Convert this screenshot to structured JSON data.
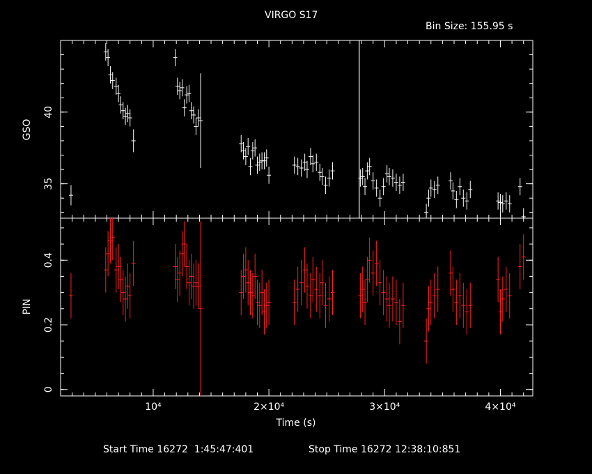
{
  "header": {
    "title": "VIRGO S17",
    "bin_size": "Bin Size: 155.95 s"
  },
  "footer": {
    "start": "Start Time 16272  1:45:47:401",
    "stop": "Stop Time 16272 12:38:10:851"
  },
  "colors": {
    "background": "#000000",
    "axes": "#ffffff",
    "gso_series": "#ffffff",
    "pin_series": "#ff2020"
  },
  "chart_data": [
    {
      "type": "scatter",
      "panel": "top",
      "title": "VIRGO S17",
      "ylabel": "GSO",
      "xlim": [
        2000,
        42800
      ],
      "ylim": [
        32.6,
        45
      ],
      "yticks": [
        35,
        40
      ],
      "yticklabels": [
        "35",
        "40"
      ],
      "xlabel": "",
      "vertical_marker_x": 27800,
      "series": [
        {
          "error_bars": true,
          "x": [
            2900,
            5900,
            6100,
            6300,
            6500,
            6800,
            7000,
            7200,
            7400,
            7600,
            7800,
            8000,
            8300,
            11900,
            12100,
            12300,
            12500,
            12700,
            12900,
            13100,
            13300,
            13500,
            13700,
            13900,
            14100,
            17600,
            17800,
            18000,
            18200,
            18400,
            18600,
            18800,
            19000,
            19200,
            19400,
            19600,
            19800,
            20000,
            22200,
            22500,
            22800,
            23100,
            23300,
            23600,
            23800,
            24100,
            24400,
            24600,
            24900,
            25200,
            25500,
            27900,
            28100,
            28300,
            28500,
            28700,
            29000,
            29300,
            29600,
            29900,
            30200,
            30400,
            30700,
            31000,
            31300,
            31600,
            33600,
            33800,
            34000,
            34300,
            34600,
            35700,
            35900,
            36200,
            36500,
            36800,
            37100,
            37400,
            39800,
            40000,
            40200,
            40500,
            40800,
            41700,
            42000
          ],
          "y": [
            34.2,
            44.2,
            43.8,
            42.6,
            42.2,
            41.8,
            41.3,
            40.5,
            40.1,
            39.7,
            39.9,
            39.6,
            38.0,
            43.8,
            41.8,
            41.5,
            41.7,
            40.3,
            41.2,
            41.3,
            40.1,
            39.8,
            39.0,
            39.6,
            39.4,
            37.8,
            37.3,
            36.9,
            37.6,
            36.2,
            37.3,
            37.5,
            36.3,
            36.5,
            36.6,
            36.6,
            36.8,
            35.6,
            36.3,
            36.2,
            36.1,
            36.5,
            36.0,
            36.9,
            36.4,
            36.5,
            35.8,
            35.5,
            34.9,
            35.4,
            35.9,
            35.4,
            35.5,
            34.8,
            35.9,
            36.2,
            35.2,
            34.7,
            34.0,
            34.8,
            35.7,
            35.5,
            35.4,
            35.1,
            34.9,
            35.1,
            33.0,
            34.0,
            34.7,
            34.6,
            34.9,
            35.2,
            34.5,
            33.9,
            34.8,
            34.0,
            33.8,
            34.6,
            33.8,
            33.7,
            33.6,
            33.8,
            33.6,
            34.8,
            32.7
          ],
          "err": [
            0.7,
            0.6,
            0.6,
            0.6,
            0.6,
            0.6,
            0.6,
            0.6,
            0.6,
            0.6,
            0.6,
            0.6,
            0.8,
            0.6,
            0.6,
            0.6,
            0.6,
            0.6,
            0.6,
            0.6,
            0.6,
            0.6,
            0.6,
            0.6,
            3.3,
            0.6,
            0.6,
            0.6,
            0.6,
            0.6,
            0.6,
            0.6,
            0.6,
            0.6,
            0.6,
            0.6,
            0.6,
            0.6,
            0.6,
            0.6,
            0.6,
            0.6,
            0.6,
            0.6,
            0.6,
            0.6,
            0.6,
            0.6,
            0.6,
            0.6,
            0.6,
            0.6,
            0.6,
            0.6,
            0.6,
            0.6,
            0.6,
            0.6,
            0.6,
            0.6,
            0.6,
            0.6,
            0.6,
            0.6,
            0.6,
            0.6,
            0.6,
            0.6,
            0.6,
            0.6,
            0.6,
            0.6,
            0.6,
            0.6,
            0.6,
            0.6,
            0.6,
            0.6,
            0.6,
            0.6,
            0.6,
            0.6,
            0.6,
            0.6,
            0.6
          ]
        }
      ]
    },
    {
      "type": "scatter",
      "panel": "bottom",
      "ylabel": "PIN",
      "xlabel": "Time (s)",
      "xlim": [
        2000,
        42800
      ],
      "ylim": [
        -0.02,
        0.53
      ],
      "yticks": [
        0,
        0.2,
        0.4
      ],
      "yticklabels": [
        "0",
        "0.2",
        "0.4"
      ],
      "xticks": [
        10000,
        20000,
        30000,
        40000
      ],
      "xticklabels": [
        "10⁴",
        "2×10⁴",
        "3×10⁴",
        "4×10⁴"
      ],
      "series": [
        {
          "error_bars": true,
          "x": [
            2900,
            5900,
            6100,
            6300,
            6500,
            6800,
            7000,
            7200,
            7400,
            7600,
            7800,
            8000,
            8300,
            11900,
            12100,
            12300,
            12500,
            12700,
            12900,
            13100,
            13300,
            13500,
            13700,
            13900,
            14100,
            17600,
            17800,
            18000,
            18200,
            18400,
            18600,
            18800,
            19000,
            19200,
            19400,
            19600,
            19800,
            20000,
            22200,
            22500,
            22800,
            23100,
            23300,
            23600,
            23800,
            24100,
            24400,
            24600,
            24900,
            25200,
            25500,
            27900,
            28100,
            28300,
            28500,
            28700,
            29000,
            29300,
            29600,
            29900,
            30200,
            30400,
            30700,
            31000,
            31300,
            31600,
            33600,
            33800,
            34000,
            34300,
            34600,
            35700,
            35900,
            36200,
            36500,
            36800,
            37100,
            37400,
            39800,
            40000,
            40200,
            40500,
            40800,
            41700,
            42000
          ],
          "y": [
            0.29,
            0.37,
            0.42,
            0.46,
            0.47,
            0.37,
            0.38,
            0.34,
            0.3,
            0.28,
            0.32,
            0.29,
            0.39,
            0.38,
            0.34,
            0.36,
            0.42,
            0.45,
            0.38,
            0.33,
            0.35,
            0.32,
            0.33,
            0.32,
            0.25,
            0.3,
            0.35,
            0.37,
            0.33,
            0.3,
            0.29,
            0.35,
            0.27,
            0.26,
            0.3,
            0.24,
            0.26,
            0.27,
            0.27,
            0.31,
            0.33,
            0.37,
            0.32,
            0.29,
            0.34,
            0.31,
            0.29,
            0.33,
            0.26,
            0.28,
            0.3,
            0.29,
            0.31,
            0.27,
            0.34,
            0.4,
            0.36,
            0.39,
            0.33,
            0.3,
            0.28,
            0.26,
            0.28,
            0.27,
            0.21,
            0.26,
            0.15,
            0.25,
            0.27,
            0.29,
            0.31,
            0.36,
            0.31,
            0.27,
            0.29,
            0.26,
            0.24,
            0.26,
            0.34,
            0.24,
            0.28,
            0.31,
            0.29,
            0.38,
            0.41
          ],
          "err": [
            0.07,
            0.07,
            0.07,
            0.07,
            0.07,
            0.07,
            0.07,
            0.07,
            0.07,
            0.07,
            0.07,
            0.07,
            0.07,
            0.07,
            0.07,
            0.07,
            0.07,
            0.07,
            0.07,
            0.07,
            0.07,
            0.07,
            0.07,
            0.07,
            0.27,
            0.07,
            0.07,
            0.07,
            0.07,
            0.07,
            0.07,
            0.07,
            0.07,
            0.07,
            0.07,
            0.07,
            0.07,
            0.07,
            0.07,
            0.07,
            0.07,
            0.07,
            0.07,
            0.07,
            0.07,
            0.07,
            0.07,
            0.07,
            0.07,
            0.07,
            0.07,
            0.07,
            0.07,
            0.07,
            0.07,
            0.07,
            0.07,
            0.07,
            0.07,
            0.07,
            0.07,
            0.07,
            0.07,
            0.07,
            0.07,
            0.07,
            0.07,
            0.07,
            0.07,
            0.07,
            0.07,
            0.07,
            0.07,
            0.07,
            0.07,
            0.07,
            0.07,
            0.07,
            0.07,
            0.07,
            0.07,
            0.07,
            0.07,
            0.07,
            0.07
          ]
        }
      ]
    }
  ]
}
